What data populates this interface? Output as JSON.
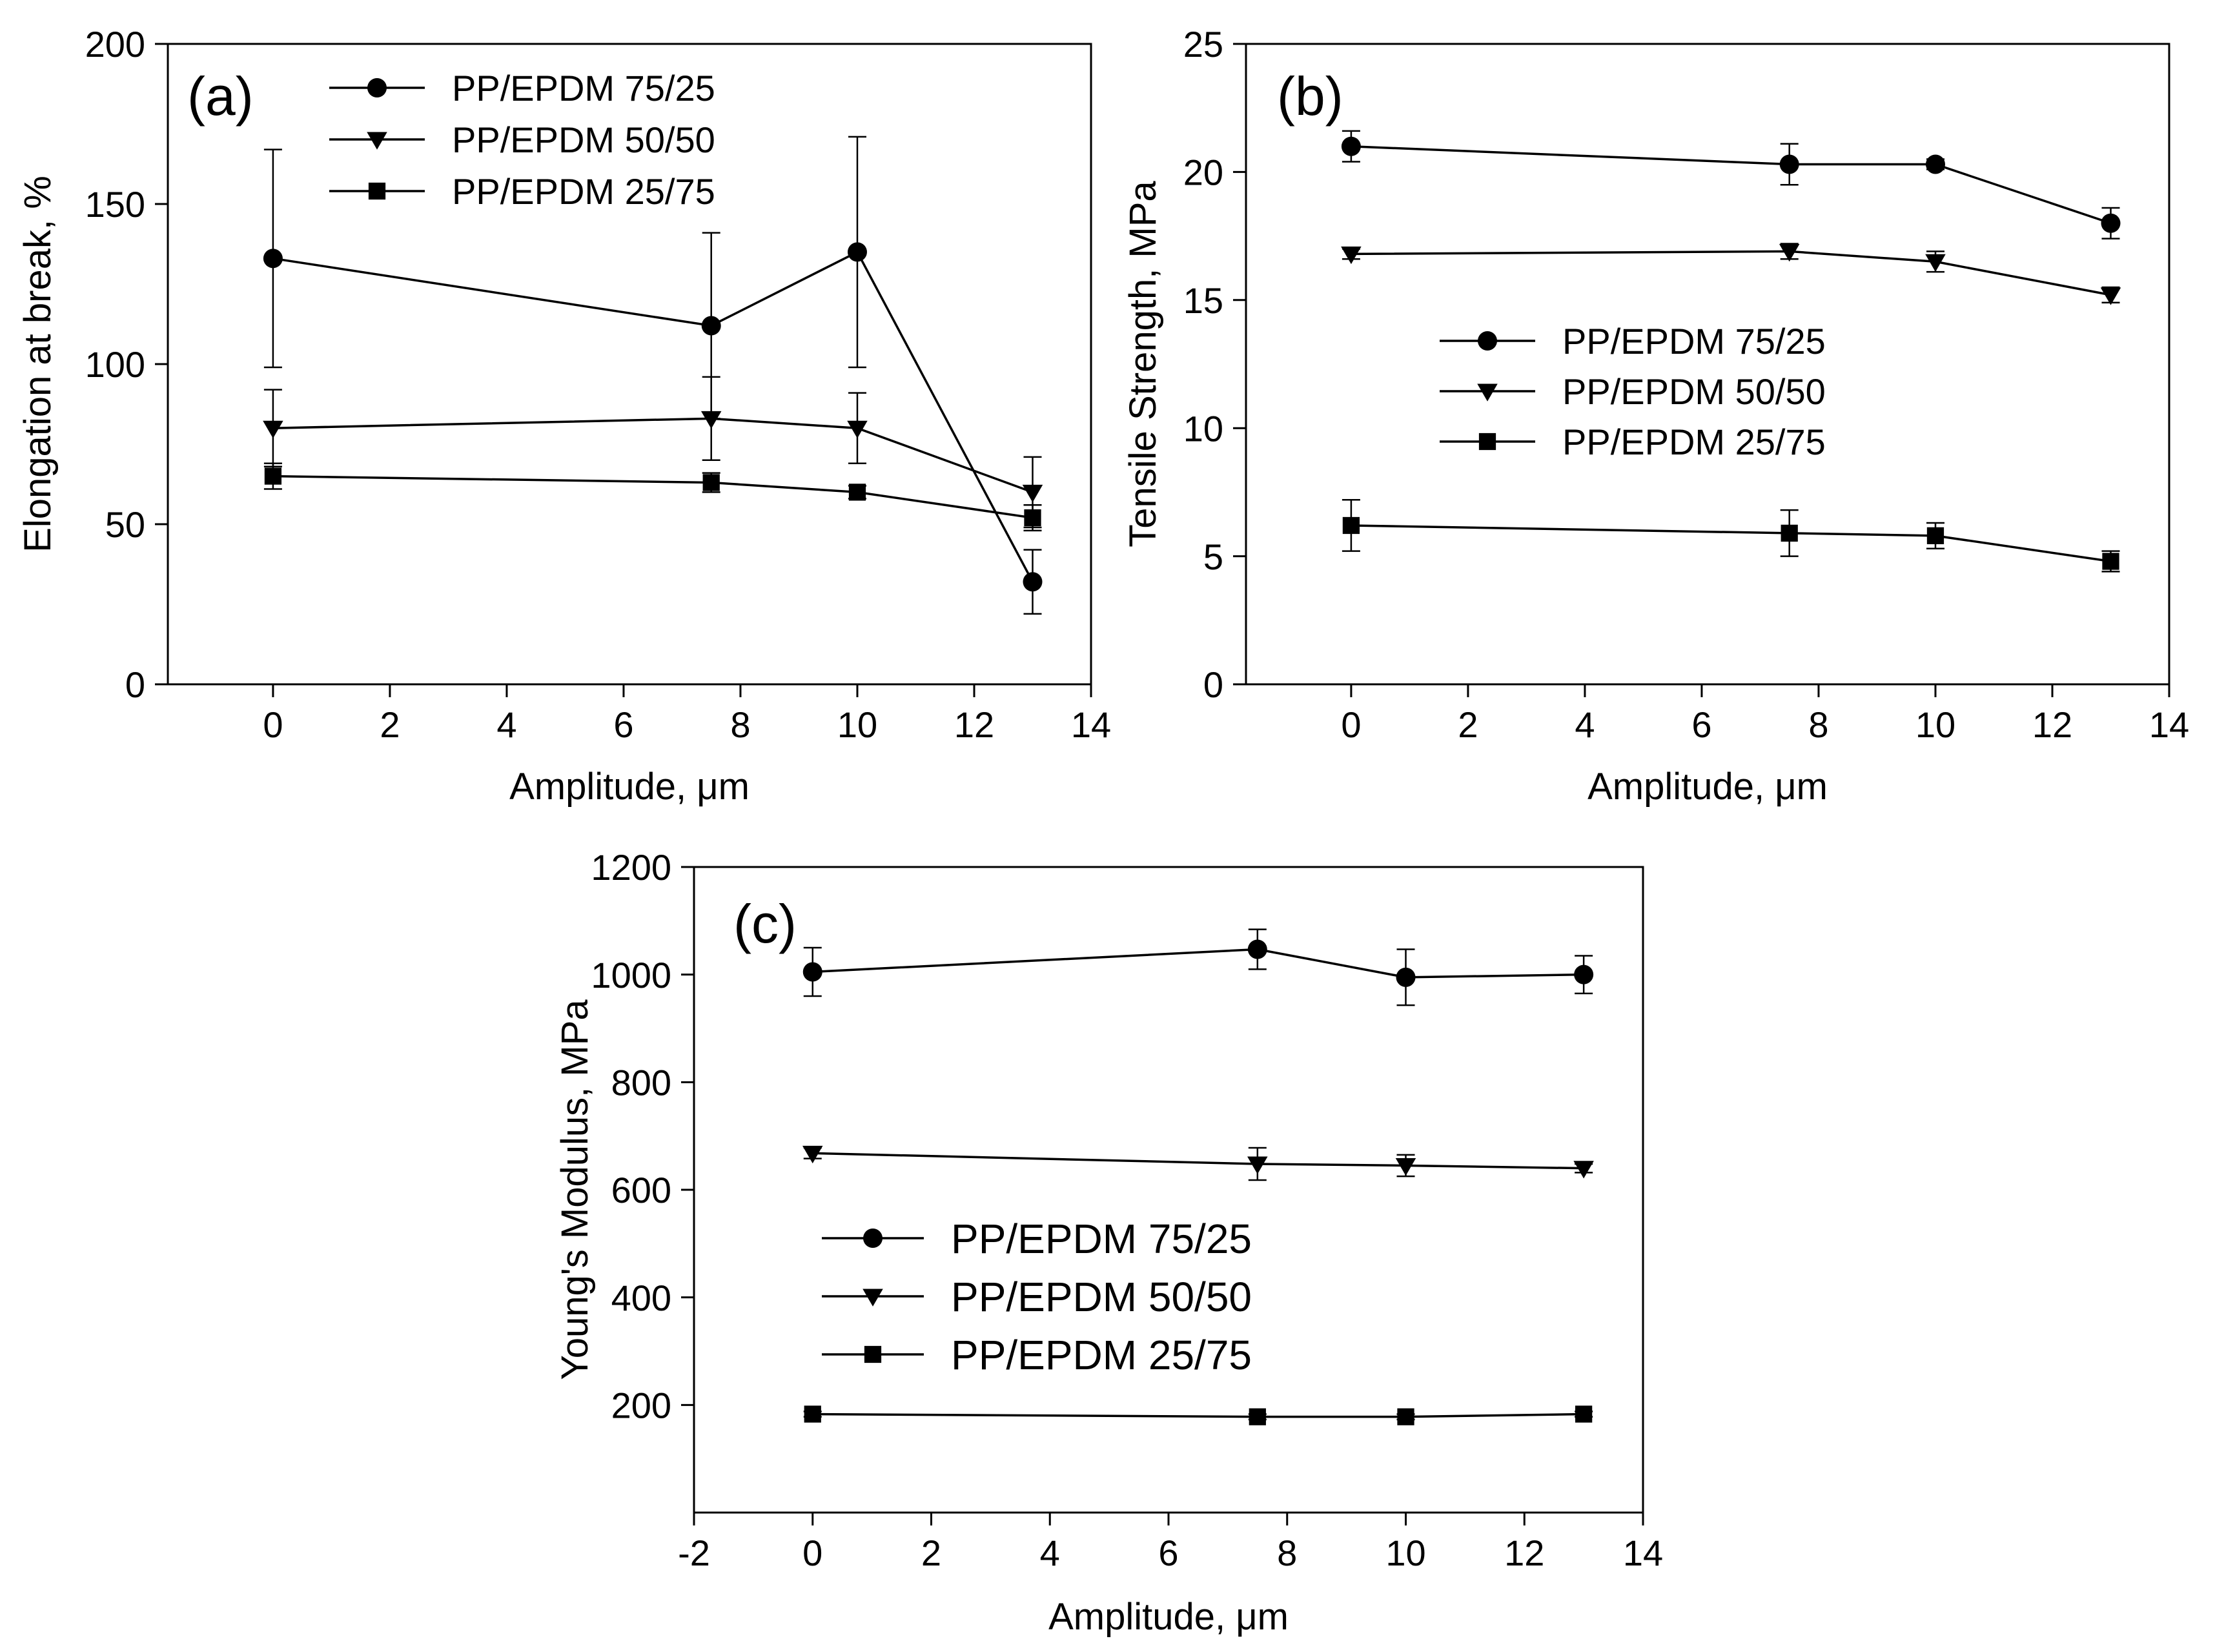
{
  "figure": {
    "legend_labels": [
      "PP/EPDM 75/25",
      "PP/EPDM 50/50",
      "PP/EPDM 25/75"
    ]
  },
  "chart_data": [
    {
      "id": "a",
      "type": "line",
      "panel_label": "(a)",
      "title": "",
      "xlabel": "Amplitude, μm",
      "ylabel": "Elongation at break, %",
      "xlim": [
        -1.8,
        14
      ],
      "ylim": [
        0,
        200
      ],
      "xticks": [
        0,
        2,
        4,
        6,
        8,
        10,
        12,
        14
      ],
      "yticks": [
        0,
        50,
        100,
        150,
        200
      ],
      "legend_position": "top-center",
      "grid": false,
      "x": [
        0,
        7.5,
        10,
        13
      ],
      "series": [
        {
          "name": "PP/EPDM 75/25",
          "marker": "circle",
          "values": [
            133,
            112,
            135,
            32
          ],
          "errors": [
            34,
            29,
            36,
            10
          ]
        },
        {
          "name": "PP/EPDM 50/50",
          "marker": "triangle-down",
          "values": [
            80,
            83,
            80,
            60
          ],
          "errors": [
            12,
            13,
            11,
            11
          ]
        },
        {
          "name": "PP/EPDM 25/75",
          "marker": "square",
          "values": [
            65,
            63,
            60,
            52
          ],
          "errors": [
            4,
            3,
            2,
            4
          ]
        }
      ]
    },
    {
      "id": "b",
      "type": "line",
      "panel_label": "(b)",
      "title": "",
      "xlabel": "Amplitude, μm",
      "ylabel": "Tensile Strength, MPa",
      "xlim": [
        -1.8,
        14
      ],
      "ylim": [
        0,
        25
      ],
      "xticks": [
        0,
        2,
        4,
        6,
        8,
        10,
        12,
        14
      ],
      "yticks": [
        0,
        5,
        10,
        15,
        20,
        25
      ],
      "legend_position": "center-left",
      "grid": false,
      "x": [
        0,
        7.5,
        10,
        13
      ],
      "series": [
        {
          "name": "PP/EPDM 75/25",
          "marker": "circle",
          "values": [
            21.0,
            20.3,
            20.3,
            18.0
          ],
          "errors": [
            0.6,
            0.8,
            0.2,
            0.6
          ]
        },
        {
          "name": "PP/EPDM 50/50",
          "marker": "triangle-down",
          "values": [
            16.8,
            16.9,
            16.5,
            15.2
          ],
          "errors": [
            0.2,
            0.3,
            0.4,
            0.3
          ]
        },
        {
          "name": "PP/EPDM 25/75",
          "marker": "square",
          "values": [
            6.2,
            5.9,
            5.8,
            4.8
          ],
          "errors": [
            1.0,
            0.9,
            0.5,
            0.4
          ]
        }
      ]
    },
    {
      "id": "c",
      "type": "line",
      "panel_label": "(c)",
      "title": "",
      "xlabel": "Amplitude, μm",
      "ylabel": "Young's Modulus, MPa",
      "xlim": [
        -2,
        14
      ],
      "ylim": [
        0,
        1200
      ],
      "xticks": [
        -2,
        0,
        2,
        4,
        6,
        8,
        10,
        12,
        14
      ],
      "yticks": [
        200,
        400,
        600,
        800,
        1000,
        1200
      ],
      "legend_position": "center-left",
      "grid": false,
      "x": [
        0,
        7.5,
        10,
        13
      ],
      "series": [
        {
          "name": "PP/EPDM 75/25",
          "marker": "circle",
          "values": [
            1005,
            1047,
            995,
            1000
          ],
          "errors": [
            45,
            37,
            52,
            35
          ]
        },
        {
          "name": "PP/EPDM 50/50",
          "marker": "triangle-down",
          "values": [
            668,
            648,
            645,
            640
          ],
          "errors": [
            10,
            30,
            20,
            8
          ]
        },
        {
          "name": "PP/EPDM 25/75",
          "marker": "square",
          "values": [
            183,
            178,
            178,
            183
          ],
          "errors": [
            5,
            5,
            5,
            5
          ]
        }
      ]
    }
  ]
}
